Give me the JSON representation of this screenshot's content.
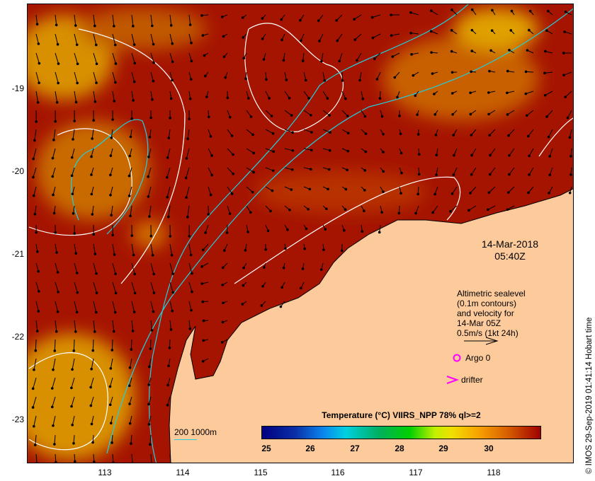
{
  "map": {
    "date": "14-Mar-2018",
    "time": "05:40Z",
    "lat_labels": [
      "-19",
      "-20",
      "-21",
      "-22",
      "-23"
    ],
    "lon_labels": [
      "113",
      "114",
      "115",
      "116",
      "117",
      "118"
    ],
    "legend": {
      "lines": [
        "Altimetric sealevel",
        "(0.1m contours)",
        "and velocity for",
        "14-Mar 05Z",
        "0.5m/s (1kt 24h)"
      ],
      "argo": "Argo 0",
      "drifter": "drifter",
      "bathymetry": "200  1000m"
    },
    "colorbar": {
      "title": "Temperature (°C) VIIRS_NPP 78% ql>=2",
      "ticks": [
        "25",
        "26",
        "27",
        "28",
        "29",
        "30"
      ]
    },
    "credit": "© IMOS 29-Sep-2019 01:41:14 Hobart time",
    "colors": {
      "ocean": "#a51400",
      "land": "#fdca9b",
      "contour": "#ffffff",
      "bathy": "#20d0e0",
      "marker": "#ff00ff"
    }
  }
}
